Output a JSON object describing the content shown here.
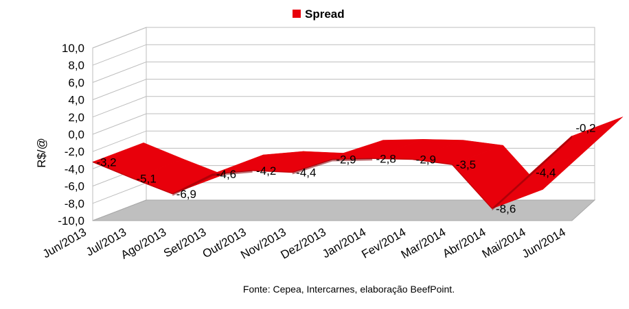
{
  "chart_data": {
    "type": "area",
    "title": "",
    "xlabel": "",
    "ylabel": "R$/@",
    "ylim": [
      -10,
      10
    ],
    "yticks": [
      "10,0",
      "8,0",
      "6,0",
      "4,0",
      "2,0",
      "0,0",
      "-2,0",
      "-4,0",
      "-6,0",
      "-8,0",
      "-10,0"
    ],
    "categories": [
      "Jun/2013",
      "Jul/2013",
      "Ago/2013",
      "Set/2013",
      "Out/2013",
      "Nov/2013",
      "Dez/2013",
      "Jan/2014",
      "Fev/2014",
      "Mar/2014",
      "Abr/2014",
      "Mai/2014",
      "Jun/2014"
    ],
    "series": [
      {
        "name": "Spread",
        "values": [
          -3.2,
          -5.1,
          -6.9,
          -4.6,
          -4.2,
          -4.4,
          -2.9,
          -2.8,
          -2.9,
          -3.5,
          -8.6,
          -4.4,
          -0.2
        ],
        "labels": [
          "-3,2",
          "-5,1",
          "-6,9",
          "-4,6",
          "-4,2",
          "-4,4",
          "-2,9",
          "-2,8",
          "-2,9",
          "-3,5",
          "-8,6",
          "-4,4",
          "-0,2"
        ],
        "color": "#e8000b"
      }
    ],
    "grid": true,
    "legend": "top",
    "style": "3d"
  },
  "source": "Fonte: Cepea, Intercarnes, elaboração BeefPoint.",
  "colors": {
    "series": "#e8000b",
    "series_dark": "#8a0007",
    "floor": "#bfbfbf",
    "grid": "#bdbdbd"
  }
}
